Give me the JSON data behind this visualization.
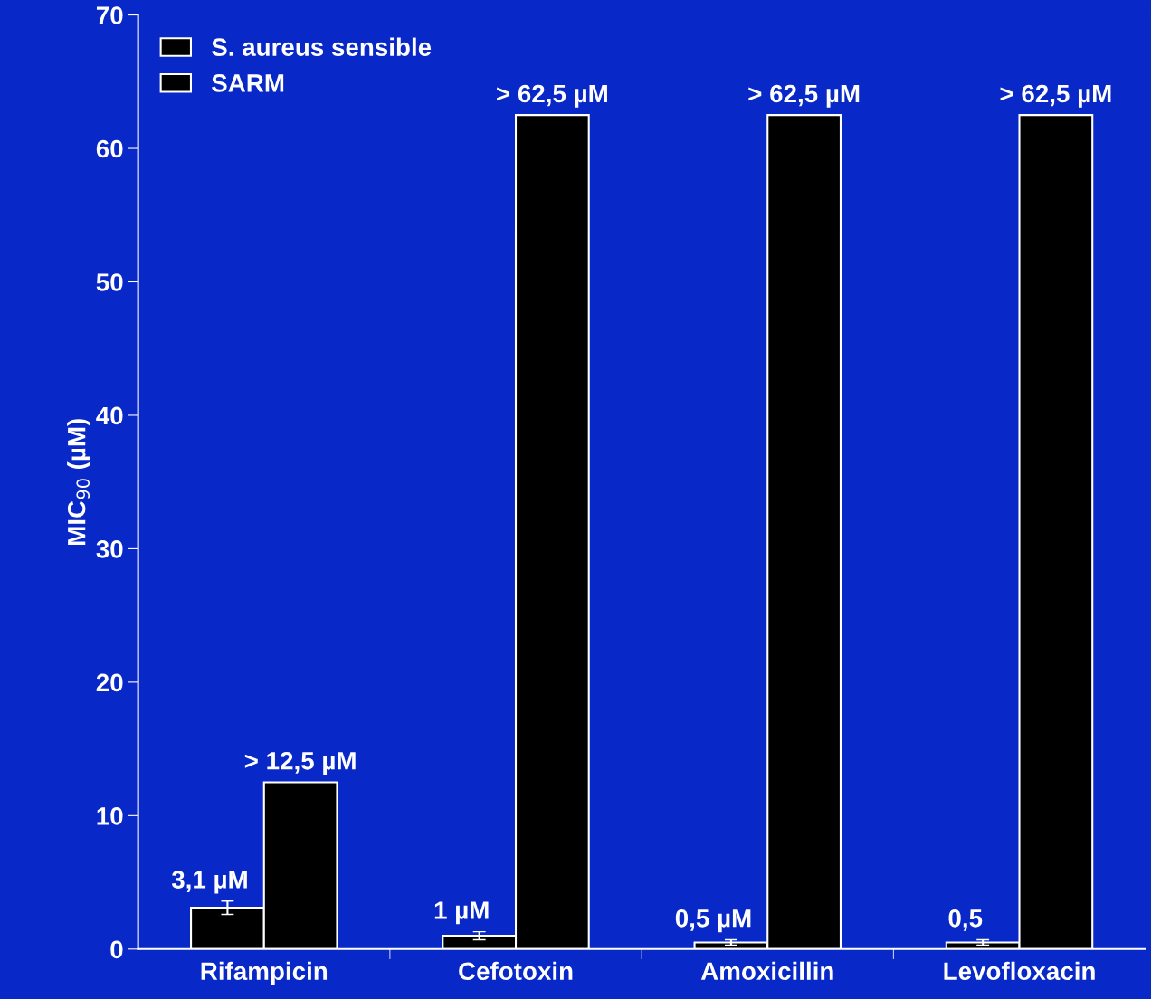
{
  "chart_data": {
    "type": "bar",
    "ylabel": "MIC$_{90}$ (µM)",
    "categories": [
      "Rifampicin",
      "Cefotoxin",
      "Amoxicillin",
      "Levofloxacin"
    ],
    "series": [
      {
        "name": "S. aureus sensible",
        "color": "#000000",
        "values": [
          3.1,
          1,
          0.5,
          0.5
        ],
        "errors": [
          0.5,
          0.3,
          0.2,
          0.2
        ],
        "value_labels": [
          "3,1 µM",
          "1 µM",
          "0,5 µM",
          "0,5"
        ]
      },
      {
        "name": "SARM",
        "color": "#000000",
        "values": [
          12.5,
          62.5,
          62.5,
          62.5
        ],
        "value_labels": [
          "> 12,5 µM",
          "> 62,5 µM",
          "> 62,5 µM",
          "> 62,5 µM"
        ]
      }
    ],
    "ylim": [
      0,
      70
    ],
    "yticks": [
      0,
      10,
      20,
      30,
      40,
      50,
      60,
      70
    ],
    "grid": false,
    "legend": "top left"
  }
}
